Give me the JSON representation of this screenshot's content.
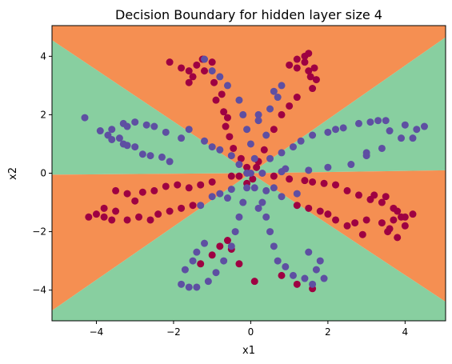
{
  "chart_data": {
    "type": "scatter",
    "title": "Decision Boundary for hidden layer size 4",
    "xlabel": "x1",
    "ylabel": "x2",
    "xlim": [
      -5.15,
      5.05
    ],
    "ylim": [
      -5.05,
      5.05
    ],
    "xticks": [
      -4,
      -2,
      0,
      2,
      4
    ],
    "xtick_labels": [
      "−4",
      "−2",
      "0",
      "2",
      "4"
    ],
    "yticks": [
      -4,
      -2,
      0,
      2,
      4
    ],
    "ytick_labels": [
      "−4",
      "−2",
      "0",
      "2",
      "4"
    ],
    "grid": false,
    "legend": "none",
    "colors": {
      "region_class_0": "#f58f52",
      "region_class_1": "#88cfa0",
      "class_0_points": "#9e0142",
      "class_1_points": "#5e4fa2"
    },
    "decision_regions": [
      {
        "class": 0,
        "polygon": [
          [
            -5.15,
            4.55
          ],
          [
            0,
            0
          ],
          [
            5.05,
            4.65
          ],
          [
            5.05,
            5.05
          ],
          [
            -5.15,
            5.05
          ]
        ]
      },
      {
        "class": 1,
        "polygon": [
          [
            -5.15,
            4.55
          ],
          [
            0,
            0
          ],
          [
            -5.15,
            -0.05
          ]
        ]
      },
      {
        "class": 1,
        "polygon": [
          [
            5.05,
            4.65
          ],
          [
            0,
            0
          ],
          [
            5.05,
            0.1
          ]
        ]
      },
      {
        "class": 0,
        "polygon": [
          [
            -5.15,
            -0.05
          ],
          [
            0,
            0
          ],
          [
            -5.15,
            -4.7
          ]
        ]
      },
      {
        "class": 0,
        "polygon": [
          [
            5.05,
            0.1
          ],
          [
            0,
            0
          ],
          [
            5.05,
            -4.4
          ]
        ]
      },
      {
        "class": 1,
        "polygon": [
          [
            -5.15,
            -4.7
          ],
          [
            0,
            0
          ],
          [
            5.05,
            -4.4
          ],
          [
            5.05,
            -5.05
          ],
          [
            -5.15,
            -5.05
          ]
        ]
      }
    ],
    "series": [
      {
        "class": 0,
        "points": [
          [
            -2.1,
            3.8
          ],
          [
            -1.8,
            3.6
          ],
          [
            -1.6,
            3.5
          ],
          [
            -1.4,
            3.7
          ],
          [
            -1.2,
            3.5
          ],
          [
            -1.5,
            3.3
          ],
          [
            -0.95,
            3.1
          ],
          [
            -0.9,
            2.5
          ],
          [
            -0.7,
            2.1
          ],
          [
            -0.65,
            1.6
          ],
          [
            -0.55,
            1.25
          ],
          [
            -0.45,
            0.85
          ],
          [
            -0.25,
            0.5
          ],
          [
            -0.1,
            0.2
          ],
          [
            -1.0,
            3.8
          ],
          [
            -1.25,
            3.9
          ],
          [
            -1.6,
            3.1
          ],
          [
            -0.75,
            2.7
          ],
          [
            -0.6,
            1.9
          ],
          [
            1.0,
            3.7
          ],
          [
            1.2,
            3.6
          ],
          [
            1.5,
            3.5
          ],
          [
            1.4,
            3.8
          ],
          [
            1.4,
            4.0
          ],
          [
            1.5,
            4.1
          ],
          [
            1.65,
            3.6
          ],
          [
            1.7,
            3.2
          ],
          [
            1.6,
            2.9
          ],
          [
            1.2,
            2.6
          ],
          [
            1.0,
            2.3
          ],
          [
            0.8,
            2.0
          ],
          [
            0.6,
            1.5
          ],
          [
            0.35,
            0.8
          ],
          [
            0.2,
            0.4
          ],
          [
            0.15,
            0.2
          ],
          [
            1.2,
            3.9
          ],
          [
            1.55,
            3.3
          ],
          [
            -3.5,
            -0.6
          ],
          [
            -3.2,
            -0.7
          ],
          [
            -2.8,
            -0.65
          ],
          [
            -2.5,
            -0.6
          ],
          [
            -2.2,
            -0.45
          ],
          [
            -1.9,
            -0.4
          ],
          [
            -1.6,
            -0.5
          ],
          [
            -1.3,
            -0.4
          ],
          [
            -1.0,
            -0.3
          ],
          [
            -0.5,
            -0.1
          ],
          [
            -0.3,
            -0.1
          ],
          [
            -4.2,
            -1.5
          ],
          [
            -4.0,
            -1.4
          ],
          [
            -3.8,
            -1.5
          ],
          [
            -3.6,
            -1.6
          ],
          [
            -3.5,
            -1.3
          ],
          [
            -3.2,
            -1.6
          ],
          [
            -2.9,
            -1.5
          ],
          [
            -2.6,
            -1.6
          ],
          [
            -2.4,
            -1.4
          ],
          [
            -2.1,
            -1.3
          ],
          [
            -1.8,
            -1.2
          ],
          [
            -1.5,
            -1.1
          ],
          [
            -3.8,
            -1.2
          ],
          [
            -3.0,
            -0.95
          ],
          [
            3.5,
            -0.8
          ],
          [
            3.2,
            -0.75
          ],
          [
            3.1,
            -0.9
          ],
          [
            3.4,
            -1.0
          ],
          [
            3.7,
            -1.2
          ],
          [
            3.8,
            -1.3
          ],
          [
            3.9,
            -1.5
          ],
          [
            4.0,
            -1.5
          ],
          [
            4.2,
            -1.4
          ],
          [
            2.8,
            -0.75
          ],
          [
            2.5,
            -0.6
          ],
          [
            2.2,
            -0.4
          ],
          [
            1.9,
            -0.35
          ],
          [
            1.6,
            -0.3
          ],
          [
            1.4,
            -0.25
          ],
          [
            1.0,
            -0.2
          ],
          [
            0.6,
            -0.1
          ],
          [
            2.0,
            -1.4
          ],
          [
            2.2,
            -1.6
          ],
          [
            1.8,
            -1.3
          ],
          [
            1.5,
            -1.2
          ],
          [
            1.2,
            -1.1
          ],
          [
            2.5,
            -1.8
          ],
          [
            2.7,
            -1.7
          ],
          [
            3.0,
            -1.6
          ],
          [
            3.4,
            -1.7
          ],
          [
            3.6,
            -1.9
          ],
          [
            3.55,
            -2.0
          ],
          [
            3.7,
            -1.6
          ],
          [
            4.0,
            -1.8
          ],
          [
            3.8,
            -2.2
          ],
          [
            2.9,
            -2.1
          ],
          [
            -1.0,
            -2.8
          ],
          [
            -0.8,
            -2.5
          ],
          [
            -0.6,
            -2.3
          ],
          [
            -1.3,
            -3.1
          ],
          [
            -0.5,
            -2.6
          ],
          [
            -0.3,
            -3.1
          ],
          [
            0.1,
            -3.7
          ],
          [
            0.8,
            -3.5
          ],
          [
            1.2,
            -3.8
          ],
          [
            1.6,
            -3.95
          ],
          [
            -0.1,
            -0.35
          ],
          [
            0.05,
            -0.2
          ]
        ]
      },
      {
        "class": 1,
        "points": [
          [
            -4.3,
            1.9
          ],
          [
            -3.9,
            1.45
          ],
          [
            -3.7,
            1.3
          ],
          [
            -3.6,
            1.15
          ],
          [
            -3.4,
            1.2
          ],
          [
            -3.3,
            1.0
          ],
          [
            -3.2,
            0.95
          ],
          [
            -3.0,
            0.9
          ],
          [
            -2.8,
            0.65
          ],
          [
            -2.6,
            0.6
          ],
          [
            -2.3,
            0.55
          ],
          [
            -2.1,
            0.4
          ],
          [
            -3.3,
            1.7
          ],
          [
            -3.0,
            1.75
          ],
          [
            -2.7,
            1.65
          ],
          [
            -2.5,
            1.6
          ],
          [
            -2.2,
            1.4
          ],
          [
            -1.6,
            1.5
          ],
          [
            -1.2,
            1.1
          ],
          [
            -1.0,
            0.9
          ],
          [
            -0.8,
            0.8
          ],
          [
            -0.5,
            0.6
          ],
          [
            -0.3,
            0.3
          ],
          [
            -3.6,
            1.5
          ],
          [
            -3.2,
            1.6
          ],
          [
            -1.8,
            1.2
          ],
          [
            -1.2,
            3.9
          ],
          [
            -1.0,
            3.5
          ],
          [
            -0.8,
            3.3
          ],
          [
            -0.6,
            3.0
          ],
          [
            -0.3,
            2.5
          ],
          [
            -0.2,
            2.0
          ],
          [
            -0.1,
            1.5
          ],
          [
            0.0,
            1.0
          ],
          [
            0.1,
            0.5
          ],
          [
            0.2,
            1.8
          ],
          [
            0.4,
            1.3
          ],
          [
            0.5,
            2.2
          ],
          [
            0.7,
            2.6
          ],
          [
            0.8,
            3.0
          ],
          [
            0.6,
            2.8
          ],
          [
            0.2,
            2.0
          ],
          [
            3.5,
            1.8
          ],
          [
            3.3,
            1.8
          ],
          [
            3.1,
            1.75
          ],
          [
            2.8,
            1.7
          ],
          [
            2.4,
            1.55
          ],
          [
            2.2,
            1.5
          ],
          [
            2.0,
            1.4
          ],
          [
            1.6,
            1.3
          ],
          [
            1.3,
            1.1
          ],
          [
            1.1,
            0.9
          ],
          [
            0.8,
            0.7
          ],
          [
            0.5,
            0.5
          ],
          [
            4.0,
            1.65
          ],
          [
            4.3,
            1.5
          ],
          [
            4.5,
            1.6
          ],
          [
            3.6,
            1.45
          ],
          [
            3.0,
            0.6
          ],
          [
            2.6,
            0.3
          ],
          [
            2.0,
            0.2
          ],
          [
            1.5,
            0.1
          ],
          [
            0.9,
            0.15
          ],
          [
            4.2,
            1.2
          ],
          [
            3.9,
            1.2
          ],
          [
            3.4,
            0.85
          ],
          [
            3.0,
            0.7
          ],
          [
            -1.2,
            -2.4
          ],
          [
            -1.4,
            -2.7
          ],
          [
            -1.5,
            -3.0
          ],
          [
            -1.7,
            -3.3
          ],
          [
            -1.8,
            -3.8
          ],
          [
            -1.6,
            -3.9
          ],
          [
            -1.4,
            -3.9
          ],
          [
            -1.1,
            -3.7
          ],
          [
            -0.9,
            -3.4
          ],
          [
            -0.7,
            -3.0
          ],
          [
            -0.5,
            -2.5
          ],
          [
            -0.4,
            -2.0
          ],
          [
            -0.3,
            -1.5
          ],
          [
            -0.2,
            -1.0
          ],
          [
            -0.1,
            -0.5
          ],
          [
            -0.5,
            -0.55
          ],
          [
            -0.8,
            -0.7
          ],
          [
            -1.0,
            -0.8
          ],
          [
            -1.3,
            -1.1
          ],
          [
            -0.6,
            -0.85
          ],
          [
            0.1,
            -0.5
          ],
          [
            0.3,
            -1.0
          ],
          [
            0.4,
            -1.5
          ],
          [
            0.5,
            -2.0
          ],
          [
            0.6,
            -2.5
          ],
          [
            0.7,
            -3.0
          ],
          [
            0.9,
            -3.2
          ],
          [
            1.1,
            -3.5
          ],
          [
            1.4,
            -3.6
          ],
          [
            1.6,
            -3.8
          ],
          [
            1.7,
            -3.3
          ],
          [
            1.8,
            -3.0
          ],
          [
            1.5,
            -2.7
          ],
          [
            1.9,
            -3.6
          ],
          [
            0.2,
            -1.2
          ],
          [
            0.4,
            -0.6
          ],
          [
            0.6,
            -0.5
          ],
          [
            0.8,
            -0.8
          ],
          [
            1.2,
            -0.7
          ],
          [
            -0.1,
            0.0
          ],
          [
            0.0,
            0.0
          ],
          [
            0.3,
            0.0
          ],
          [
            0.8,
            0.05
          ]
        ]
      }
    ]
  }
}
